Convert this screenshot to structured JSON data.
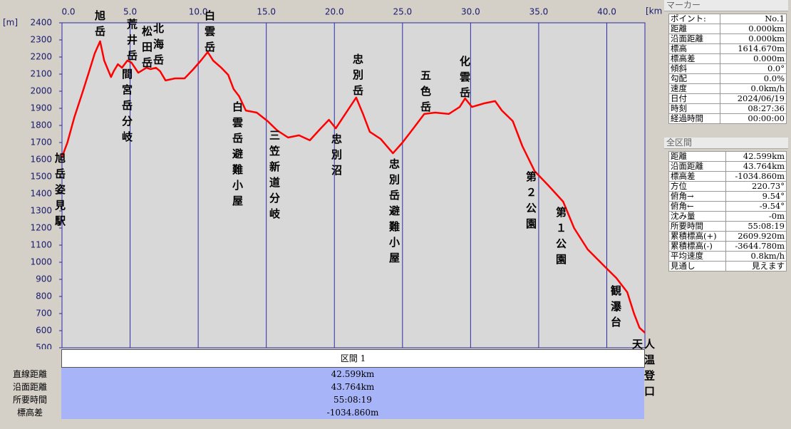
{
  "chart_data": {
    "type": "line",
    "x_unit": "[km]",
    "y_unit": "[m]",
    "xlim": [
      0,
      42.8
    ],
    "ylim": [
      500,
      2400
    ],
    "xticks": [
      {
        "value": 0,
        "label": "0.0"
      },
      {
        "value": 5,
        "label": "5.0"
      },
      {
        "value": 10,
        "label": "10.0"
      },
      {
        "value": 15,
        "label": "15.0"
      },
      {
        "value": 20,
        "label": "20.0"
      },
      {
        "value": 25,
        "label": "25.0"
      },
      {
        "value": 30,
        "label": "30.0"
      },
      {
        "value": 35,
        "label": "35.0"
      },
      {
        "value": 40,
        "label": "40.0"
      }
    ],
    "yticks": [
      500,
      600,
      700,
      800,
      900,
      1000,
      1100,
      1200,
      1300,
      1400,
      1500,
      1600,
      1700,
      1800,
      1900,
      2000,
      2100,
      2200,
      2300,
      2400
    ],
    "grid": true,
    "x": [
      0,
      0.4,
      0.9,
      1.5,
      2.0,
      2.4,
      2.8,
      3.1,
      3.6,
      3.8,
      4.1,
      4.4,
      4.8,
      5.1,
      5.6,
      6.2,
      6.5,
      6.9,
      7.2,
      7.6,
      8.3,
      9.0,
      9.6,
      10.2,
      10.7,
      11.1,
      11.7,
      12.2,
      12.6,
      13.0,
      13.5,
      14.3,
      15.1,
      15.8,
      16.6,
      17.4,
      18.2,
      19.0,
      19.6,
      20.1,
      20.8,
      21.6,
      22.1,
      22.6,
      23.4,
      24.3,
      25.0,
      25.8,
      26.6,
      27.4,
      28.4,
      29.2,
      29.6,
      30.1,
      31.0,
      31.8,
      32.3,
      33.1,
      33.8,
      34.7,
      35.7,
      36.8,
      37.6,
      38.6,
      39.9,
      40.7,
      41.5,
      42.0,
      42.4,
      42.8
    ],
    "series": [
      {
        "color": "#ff0000",
        "values": [
          1615,
          1700,
          1846,
          1992,
          2117,
          2221,
          2292,
          2179,
          2083,
          2117,
          2158,
          2137,
          2179,
          2167,
          2108,
          2137,
          2129,
          2137,
          2117,
          2063,
          2075,
          2075,
          2125,
          2179,
          2229,
          2179,
          2137,
          2096,
          2013,
          1971,
          1887,
          1875,
          1825,
          1771,
          1729,
          1742,
          1713,
          1783,
          1833,
          1783,
          1867,
          1963,
          1867,
          1763,
          1721,
          1637,
          1700,
          1783,
          1867,
          1875,
          1867,
          1908,
          1958,
          1908,
          1929,
          1942,
          1887,
          1825,
          1679,
          1533,
          1450,
          1354,
          1200,
          1075,
          971,
          908,
          825,
          700,
          617,
          588
        ]
      }
    ],
    "annotations": [
      "旭岳姿見駅",
      "旭岳",
      "荒井岳",
      "間宮岳分岐",
      "松田岳",
      "北海岳",
      "白雲岳",
      "白雲岳避難小屋",
      "三笠新道分岐",
      "忠別沼",
      "忠別岳",
      "忠別岳避難小屋",
      "五色岳",
      "化雲岳",
      "第２公園",
      "第１公園",
      "観瀑台",
      "天人峡温泉登山口"
    ]
  },
  "section_table": {
    "header": "区間 1",
    "rows": [
      [
        "直線距離",
        "42.599km"
      ],
      [
        "沿面距離",
        "43.764km"
      ],
      [
        "所要時間",
        "55:08:19"
      ],
      [
        "標高差",
        "-1034.860m"
      ]
    ]
  },
  "marker_panel": {
    "title": "マーカー",
    "rows": [
      [
        "ポイント:",
        "No.1"
      ],
      [
        "距離",
        "0.000km"
      ],
      [
        "沿面距離",
        "0.000km"
      ],
      [
        "標高",
        "1614.670m"
      ],
      [
        "標高差",
        "0.000m"
      ],
      [
        "傾斜",
        "0.0°"
      ],
      [
        "勾配",
        "0.0%"
      ],
      [
        "速度",
        "0.0km/h"
      ],
      [
        "日付",
        "2024/06/19"
      ],
      [
        "時刻",
        "08:27:36"
      ],
      [
        "経過時間",
        "00:00:00"
      ]
    ]
  },
  "total_panel": {
    "title": "全区間",
    "rows": [
      [
        "距離",
        "42.599km"
      ],
      [
        "沿面距離",
        "43.764km"
      ],
      [
        "標高差",
        "-1034.860m"
      ],
      [
        "方位",
        "220.73°"
      ],
      [
        "俯角→",
        "9.54°"
      ],
      [
        "俯角←",
        "-9.54°"
      ],
      [
        "沈み量",
        "-0m"
      ],
      [
        "所要時間",
        "55:08:19"
      ],
      [
        "累積標高(+)",
        "2609.920m"
      ],
      [
        "累積標高(-)",
        "-3644.780m"
      ],
      [
        "平均速度",
        "0.8km/h"
      ],
      [
        "見通し",
        "見えます"
      ]
    ]
  }
}
